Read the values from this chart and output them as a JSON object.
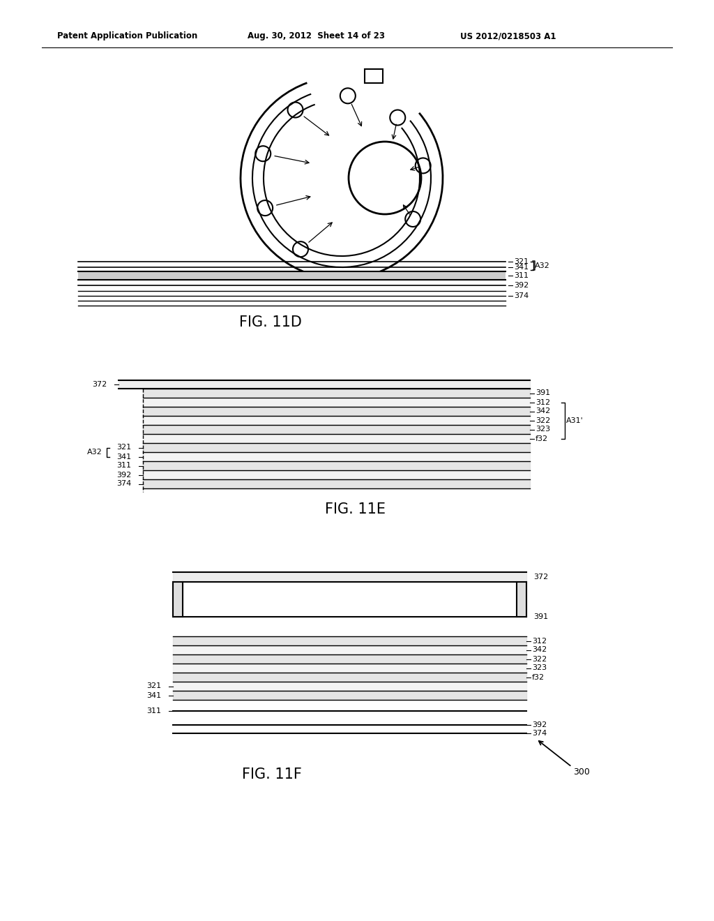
{
  "bg_color": "#ffffff",
  "header_left": "Patent Application Publication",
  "header_center": "Aug. 30, 2012  Sheet 14 of 23",
  "header_right": "US 2012/0218503 A1",
  "fig11d_label": "FIG. 11D",
  "fig11e_label": "FIG. 11E",
  "fig11f_label": "FIG. 11F"
}
